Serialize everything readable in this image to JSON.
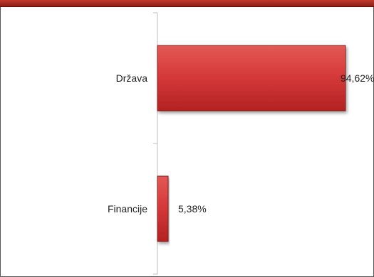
{
  "chart_data": {
    "type": "bar",
    "orientation": "horizontal",
    "categories": [
      "Država",
      "Financije"
    ],
    "values": [
      94.62,
      5.38
    ],
    "data_labels": [
      "94,62%",
      "5,38%"
    ],
    "xlim": [
      0,
      100
    ],
    "grid": false,
    "colors": {
      "bar": "#d63a3a",
      "bar_dark": "#8b1a1a",
      "header": "#b8302a"
    }
  }
}
